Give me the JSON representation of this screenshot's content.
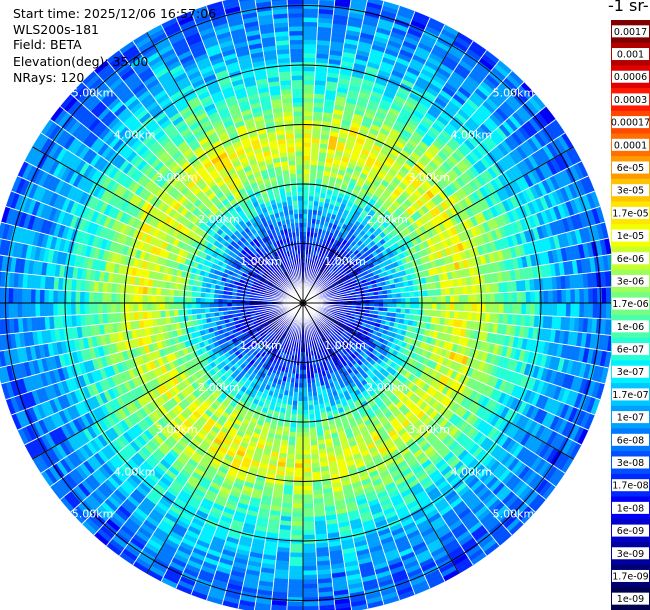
{
  "info": {
    "start_time": "Start time: 2025/12/06 16:57:06",
    "instrument": "WLS200s-181",
    "field": "Field: BETA",
    "elevation": "Elevation(deg): 35.00",
    "nrays": "NRays: 120"
  },
  "colorbar": {
    "title": "-1 sr-",
    "labels": [
      "0.0017",
      "0.001",
      "0.0006",
      "0.0003",
      "0.00017",
      "0.0001",
      "6e-05",
      "3e-05",
      "1.7e-05",
      "1e-05",
      "6e-06",
      "3e-06",
      "1.7e-06",
      "1e-06",
      "6e-07",
      "3e-07",
      "1.7e-07",
      "1e-07",
      "6e-08",
      "3e-08",
      "1.7e-08",
      "1e-08",
      "6e-09",
      "3e-09",
      "1.7e-09",
      "1e-09"
    ],
    "colors": [
      "#800000",
      "#b20000",
      "#e00000",
      "#ff1a00",
      "#ff4800",
      "#ff7000",
      "#ff9a00",
      "#ffc400",
      "#ffe600",
      "#f2ff00",
      "#c8ff2e",
      "#9dff5a",
      "#74ff82",
      "#4cffad",
      "#24ffd6",
      "#00f0ff",
      "#00c8ff",
      "#00a0ff",
      "#0078ff",
      "#0050ff",
      "#0028ff",
      "#0000f5",
      "#0000c8",
      "#00009e",
      "#000075",
      "#000050"
    ]
  },
  "chart_data": {
    "type": "heatmap",
    "projection": "polar (PPI scan)",
    "field": "BETA",
    "elevation_deg": 35.0,
    "n_rays": 120,
    "range_rings_km": [
      1,
      2,
      3,
      4,
      5
    ],
    "ring_labels": [
      "1.00km",
      "2.00km",
      "3.00km",
      "4.00km",
      "5.00km"
    ],
    "max_range_km": 5.25,
    "azimuth_step_deg": 3,
    "spoke_step_deg": 30,
    "scale": "log",
    "value_range": [
      1e-09,
      0.0017
    ],
    "radial_profile_km": [
      {
        "range_km": 0.25,
        "beta": 5e-09
      },
      {
        "range_km": 0.75,
        "beta": 8e-09
      },
      {
        "range_km": 1.25,
        "beta": 3e-08
      },
      {
        "range_km": 1.75,
        "beta": 3e-07
      },
      {
        "range_km": 2.25,
        "beta": 3e-06
      },
      {
        "range_km": 2.75,
        "beta": 8e-06
      },
      {
        "range_km": 3.25,
        "beta": 2e-06
      },
      {
        "range_km": 3.75,
        "beta": 5e-07
      },
      {
        "range_km": 4.25,
        "beta": 1.5e-07
      },
      {
        "range_km": 4.75,
        "beta": 7e-08
      },
      {
        "range_km": 5.25,
        "beta": 3e-08
      }
    ]
  }
}
